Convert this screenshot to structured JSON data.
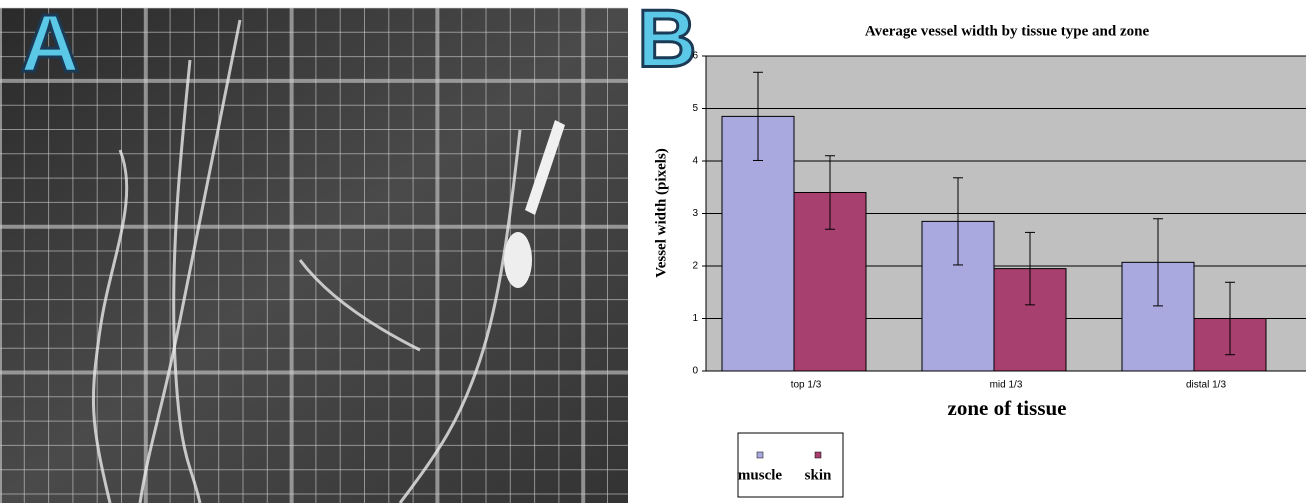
{
  "panel_a": {
    "label": "A"
  },
  "chart_data": {
    "type": "bar",
    "panel_label": "B",
    "title": "Average vessel width by tissue type and zone",
    "y_label": "Vessel width (pixels)",
    "x_label": "zone of tissue",
    "categories": [
      "top 1/3",
      "mid 1/3",
      "distal 1/3"
    ],
    "series": [
      {
        "name": "muscle",
        "color": "#a9a9df",
        "values": [
          4.85,
          2.85,
          2.07
        ],
        "errors": [
          0.84,
          0.83,
          0.83
        ]
      },
      {
        "name": "skin",
        "color": "#a8406f",
        "values": [
          3.4,
          1.95,
          1.0
        ],
        "errors": [
          0.7,
          0.69,
          0.69
        ]
      }
    ],
    "ylim": [
      0,
      6
    ],
    "yticks": [
      0,
      1,
      2,
      3,
      4,
      5,
      6
    ],
    "grid": true
  }
}
